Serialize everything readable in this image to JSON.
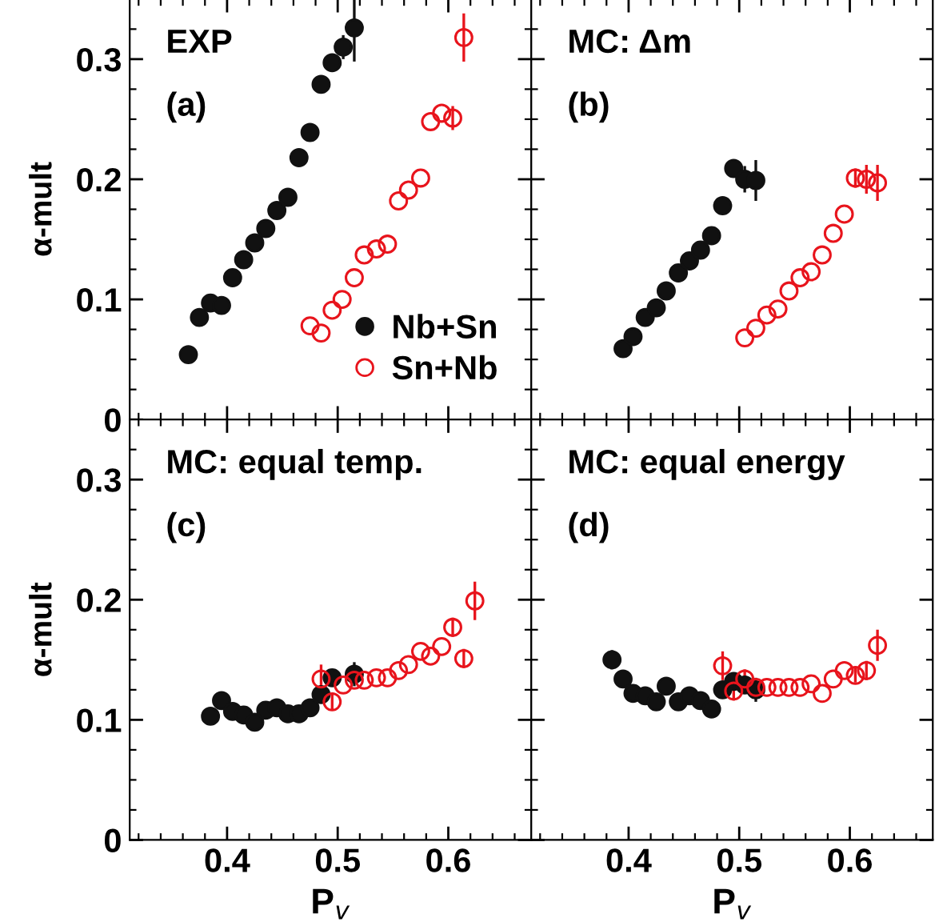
{
  "chart_data": [
    {
      "type": "scatter",
      "title": "EXP",
      "annotations": [
        "(a)"
      ],
      "ylabel": "α-mult",
      "xlim": [
        0.312,
        0.675
      ],
      "ylim": [
        0,
        0.35
      ],
      "tick_labels": "y",
      "legend": "bottom right",
      "marker": "circle",
      "xticks": [
        {
          "value": 0.32,
          "label": null
        },
        {
          "value": 0.34,
          "label": null
        },
        {
          "value": 0.36,
          "label": null
        },
        {
          "value": 0.38,
          "label": null
        },
        0.4,
        {
          "value": 0.42,
          "label": null
        },
        {
          "value": 0.44,
          "label": null
        },
        {
          "value": 0.46,
          "label": null
        },
        {
          "value": 0.48,
          "label": null
        },
        0.5,
        {
          "value": 0.52,
          "label": null
        },
        {
          "value": 0.54,
          "label": null
        },
        {
          "value": 0.56,
          "label": null
        },
        {
          "value": 0.58,
          "label": null
        },
        0.6,
        {
          "value": 0.62,
          "label": null
        },
        {
          "value": 0.64,
          "label": null
        },
        {
          "value": 0.66,
          "label": null
        }
      ],
      "yticks": [
        0,
        {
          "value": 0.025,
          "label": null
        },
        {
          "value": 0.05,
          "label": null
        },
        {
          "value": 0.075,
          "label": null
        },
        0.1,
        {
          "value": 0.125,
          "label": null
        },
        {
          "value": 0.15,
          "label": null
        },
        {
          "value": 0.175,
          "label": null
        },
        0.2,
        {
          "value": 0.225,
          "label": null
        },
        {
          "value": 0.25,
          "label": null
        },
        {
          "value": 0.275,
          "label": null
        },
        0.3,
        {
          "value": 0.325,
          "label": null
        }
      ],
      "series": [
        {
          "name": "Nb+Sn",
          "color": "#111111",
          "x": [
            0.365,
            0.375,
            0.385,
            0.395,
            0.405,
            0.415,
            0.425,
            0.435,
            0.445,
            0.455,
            0.465,
            0.475,
            0.485,
            0.495,
            0.505,
            0.515
          ],
          "values": [
            0.054,
            0.085,
            0.097,
            0.095,
            0.118,
            0.133,
            0.147,
            0.159,
            0.174,
            0.185,
            0.218,
            0.239,
            0.279,
            0.297,
            0.31,
            0.326
          ],
          "errors": [
            null,
            null,
            null,
            null,
            null,
            null,
            null,
            null,
            null,
            null,
            null,
            null,
            null,
            0.006,
            0.01,
            [
              0.298,
              0.35
            ]
          ]
        },
        {
          "name": "Sn+Nb",
          "color": "#e8141c",
          "x": [
            0.475,
            0.485,
            0.495,
            0.504,
            0.515,
            0.524,
            0.535,
            0.545,
            0.555,
            0.564,
            0.575,
            0.584,
            0.594,
            0.604,
            0.614
          ],
          "values": [
            0.078,
            0.072,
            0.091,
            0.1,
            0.118,
            0.137,
            0.142,
            0.146,
            0.182,
            0.191,
            0.201,
            0.248,
            0.255,
            0.251,
            0.318
          ],
          "errors": [
            null,
            null,
            null,
            null,
            null,
            null,
            null,
            null,
            null,
            null,
            null,
            null,
            null,
            0.01,
            0.02
          ]
        }
      ]
    },
    {
      "type": "scatter",
      "title": "MC: Δm",
      "annotations": [
        "(b)"
      ],
      "xlim": [
        0.312,
        0.675
      ],
      "ylim": [
        0,
        0.35
      ],
      "tick_labels": false,
      "marker": "circle",
      "xticks": [
        {
          "value": 0.32,
          "label": null
        },
        {
          "value": 0.34,
          "label": null
        },
        {
          "value": 0.36,
          "label": null
        },
        {
          "value": 0.38,
          "label": null
        },
        0.4,
        {
          "value": 0.42,
          "label": null
        },
        {
          "value": 0.44,
          "label": null
        },
        {
          "value": 0.46,
          "label": null
        },
        {
          "value": 0.48,
          "label": null
        },
        0.5,
        {
          "value": 0.52,
          "label": null
        },
        {
          "value": 0.54,
          "label": null
        },
        {
          "value": 0.56,
          "label": null
        },
        {
          "value": 0.58,
          "label": null
        },
        0.6,
        {
          "value": 0.62,
          "label": null
        },
        {
          "value": 0.64,
          "label": null
        },
        {
          "value": 0.66,
          "label": null
        }
      ],
      "yticks": [
        0,
        {
          "value": 0.025,
          "label": null
        },
        {
          "value": 0.05,
          "label": null
        },
        {
          "value": 0.075,
          "label": null
        },
        0.1,
        {
          "value": 0.125,
          "label": null
        },
        {
          "value": 0.15,
          "label": null
        },
        {
          "value": 0.175,
          "label": null
        },
        0.2,
        {
          "value": 0.225,
          "label": null
        },
        {
          "value": 0.25,
          "label": null
        },
        {
          "value": 0.275,
          "label": null
        },
        0.3,
        {
          "value": 0.325,
          "label": null
        }
      ],
      "series": [
        {
          "color": "#111111",
          "x": [
            0.395,
            0.404,
            0.415,
            0.425,
            0.434,
            0.445,
            0.455,
            0.465,
            0.475,
            0.485,
            0.495,
            0.505,
            0.515
          ],
          "values": [
            0.059,
            0.069,
            0.085,
            0.093,
            0.107,
            0.122,
            0.132,
            0.141,
            0.153,
            0.178,
            0.209,
            0.2,
            0.199
          ],
          "errors": [
            null,
            null,
            null,
            null,
            null,
            null,
            null,
            null,
            null,
            0.006,
            0.006,
            0.011,
            0.017
          ]
        },
        {
          "color": "#e8141c",
          "x": [
            0.505,
            0.515,
            0.525,
            0.535,
            0.545,
            0.555,
            0.565,
            0.575,
            0.585,
            0.595,
            0.605,
            0.615,
            0.625
          ],
          "values": [
            0.068,
            0.076,
            0.087,
            0.092,
            0.107,
            0.118,
            0.123,
            0.137,
            0.155,
            0.171,
            0.201,
            0.2,
            0.197
          ],
          "errors": [
            null,
            null,
            null,
            null,
            null,
            null,
            null,
            null,
            null,
            null,
            0.008,
            0.012,
            0.015
          ]
        }
      ]
    },
    {
      "type": "scatter",
      "title": "MC: equal temp.",
      "annotations": [
        "(c)"
      ],
      "ylabel": "α-mult",
      "xlabel": "P$_{v}$",
      "xlim": [
        0.312,
        0.675
      ],
      "ylim": [
        0,
        0.35
      ],
      "marker": "circle",
      "xticks": [
        {
          "value": 0.32,
          "label": null
        },
        {
          "value": 0.34,
          "label": null
        },
        {
          "value": 0.36,
          "label": null
        },
        {
          "value": 0.38,
          "label": null
        },
        0.4,
        {
          "value": 0.42,
          "label": null
        },
        {
          "value": 0.44,
          "label": null
        },
        {
          "value": 0.46,
          "label": null
        },
        {
          "value": 0.48,
          "label": null
        },
        0.5,
        {
          "value": 0.52,
          "label": null
        },
        {
          "value": 0.54,
          "label": null
        },
        {
          "value": 0.56,
          "label": null
        },
        {
          "value": 0.58,
          "label": null
        },
        0.6,
        {
          "value": 0.62,
          "label": null
        },
        {
          "value": 0.64,
          "label": null
        },
        {
          "value": 0.66,
          "label": null
        }
      ],
      "yticks": [
        0,
        {
          "value": 0.025,
          "label": null
        },
        {
          "value": 0.05,
          "label": null
        },
        {
          "value": 0.075,
          "label": null
        },
        0.1,
        {
          "value": 0.125,
          "label": null
        },
        {
          "value": 0.15,
          "label": null
        },
        {
          "value": 0.175,
          "label": null
        },
        0.2,
        {
          "value": 0.225,
          "label": null
        },
        {
          "value": 0.25,
          "label": null
        },
        {
          "value": 0.275,
          "label": null
        },
        0.3,
        {
          "value": 0.325,
          "label": null
        }
      ],
      "series": [
        {
          "color": "#111111",
          "x": [
            0.385,
            0.395,
            0.405,
            0.415,
            0.425,
            0.435,
            0.445,
            0.455,
            0.465,
            0.475,
            0.485,
            0.495,
            0.505,
            0.515
          ],
          "values": [
            0.103,
            0.116,
            0.107,
            0.104,
            0.098,
            0.108,
            0.11,
            0.105,
            0.105,
            0.11,
            0.121,
            0.135,
            null,
            0.138
          ],
          "errors": [
            null,
            null,
            null,
            null,
            null,
            null,
            null,
            null,
            null,
            null,
            null,
            null,
            null,
            0.01
          ]
        },
        {
          "color": "#e8141c",
          "x": [
            0.485,
            0.495,
            0.505,
            0.515,
            0.524,
            0.535,
            0.545,
            0.555,
            0.564,
            0.575,
            0.584,
            0.594,
            0.604,
            0.614,
            0.624
          ],
          "values": [
            0.134,
            0.115,
            0.129,
            0.133,
            0.133,
            0.135,
            0.135,
            0.141,
            0.146,
            0.157,
            0.153,
            0.161,
            0.177,
            0.151,
            0.199
          ],
          "errors": [
            0.012,
            0.007,
            null,
            null,
            null,
            null,
            null,
            null,
            null,
            null,
            null,
            null,
            0.008,
            0.008,
            0.016
          ]
        }
      ]
    },
    {
      "type": "scatter",
      "title": "MC: equal energy",
      "annotations": [
        "(d)"
      ],
      "xlabel": "P$_{v}$",
      "xlim": [
        0.312,
        0.675
      ],
      "ylim": [
        0,
        0.35
      ],
      "tick_labels": "x",
      "marker": "circle",
      "xticks": [
        {
          "value": 0.32,
          "label": null
        },
        {
          "value": 0.34,
          "label": null
        },
        {
          "value": 0.36,
          "label": null
        },
        {
          "value": 0.38,
          "label": null
        },
        0.4,
        {
          "value": 0.42,
          "label": null
        },
        {
          "value": 0.44,
          "label": null
        },
        {
          "value": 0.46,
          "label": null
        },
        {
          "value": 0.48,
          "label": null
        },
        0.5,
        {
          "value": 0.52,
          "label": null
        },
        {
          "value": 0.54,
          "label": null
        },
        {
          "value": 0.56,
          "label": null
        },
        {
          "value": 0.58,
          "label": null
        },
        0.6,
        {
          "value": 0.62,
          "label": null
        },
        {
          "value": 0.64,
          "label": null
        },
        {
          "value": 0.66,
          "label": null
        }
      ],
      "yticks": [
        0,
        {
          "value": 0.025,
          "label": null
        },
        {
          "value": 0.05,
          "label": null
        },
        {
          "value": 0.075,
          "label": null
        },
        0.1,
        {
          "value": 0.125,
          "label": null
        },
        {
          "value": 0.15,
          "label": null
        },
        {
          "value": 0.175,
          "label": null
        },
        0.2,
        {
          "value": 0.225,
          "label": null
        },
        {
          "value": 0.25,
          "label": null
        },
        {
          "value": 0.275,
          "label": null
        },
        0.3,
        {
          "value": 0.325,
          "label": null
        }
      ],
      "series": [
        {
          "color": "#111111",
          "x": [
            0.385,
            0.395,
            0.404,
            0.415,
            0.425,
            0.434,
            0.445,
            0.455,
            0.465,
            0.475,
            0.485,
            0.495,
            0.505,
            0.515
          ],
          "values": [
            0.15,
            0.134,
            0.122,
            0.12,
            0.115,
            0.128,
            0.115,
            0.12,
            0.116,
            0.109,
            0.125,
            0.132,
            0.129,
            0.125
          ],
          "errors": [
            0.008,
            null,
            null,
            null,
            null,
            null,
            null,
            null,
            null,
            null,
            null,
            null,
            null,
            0.01
          ]
        },
        {
          "color": "#e8141c",
          "x": [
            0.485,
            0.495,
            0.505,
            0.515,
            0.525,
            0.535,
            0.545,
            0.555,
            0.565,
            0.575,
            0.585,
            0.595,
            0.605,
            0.615,
            0.625
          ],
          "values": [
            0.145,
            0.124,
            0.134,
            0.127,
            0.127,
            0.127,
            0.127,
            0.127,
            0.13,
            0.122,
            0.134,
            0.141,
            0.137,
            0.141,
            0.162
          ],
          "errors": [
            0.012,
            0.008,
            0.008,
            null,
            null,
            null,
            null,
            null,
            null,
            null,
            null,
            null,
            0.006,
            0.008,
            0.013
          ]
        }
      ]
    }
  ]
}
